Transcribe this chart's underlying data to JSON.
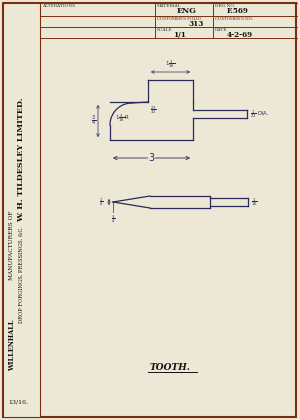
{
  "bg_color": "#ede8d5",
  "paper_color": "#eee9d6",
  "border_color": "#7a3010",
  "line_color": "#2a2a5a",
  "dim_color": "#2a2a5a",
  "title_text": "TOOTH.",
  "header": {
    "alterations": "ALTERATIONS",
    "material_label": "MATERIAL",
    "material_val": "ENG",
    "drg_no_label": "DRG NO.",
    "drg_no_val": "F.569",
    "customer_folio_label": "CUSTOMER'S FOLIO",
    "customer_folio_val": "313",
    "customer_no_label": "CUSTOMER'S NO.",
    "scale_label": "SCALE",
    "scale_val": "1/1",
    "date_label": "DATE",
    "date_val": "4-2-69"
  },
  "sidebar": {
    "company": "W. H. TILDESLEY LIMITED.",
    "mfr": "MANUFACTURERS OF",
    "products": "DROP FORGINGS, PRESSINGS, &C.",
    "location": "WILLENHALL"
  },
  "stamp": "13/16."
}
